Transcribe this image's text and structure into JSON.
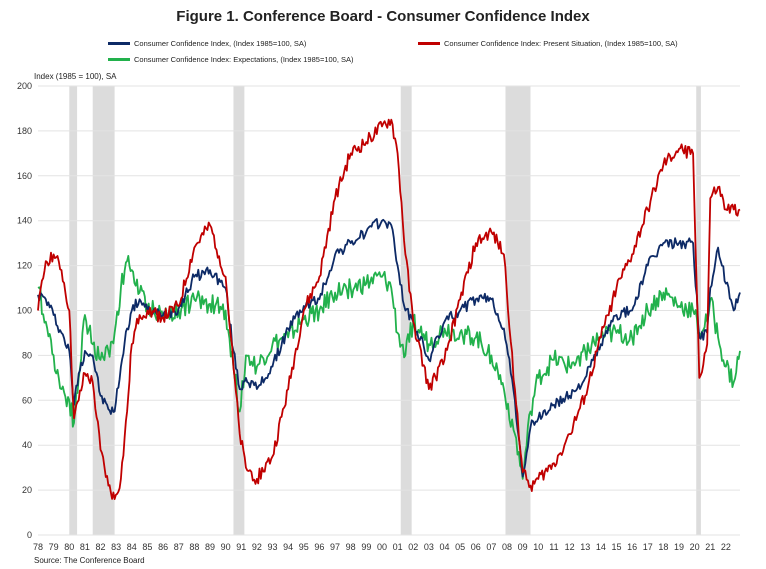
{
  "title": "Figure 1. Conference Board - Consumer Confidence Index",
  "legend": [
    {
      "label": "Consumer Confidence Index, (Index 1985=100, SA)",
      "color": "#0d2a66"
    },
    {
      "label": "Consumer Confidence Index: Present Situation, (Index 1985=100, SA)",
      "color": "#c00000"
    },
    {
      "label": "Consumer Confidence Index: Expectations, (Index 1985=100, SA)",
      "color": "#22b14c"
    }
  ],
  "y_unit": "Index (1985 = 100), SA",
  "source": "Source: The Conference Board",
  "chart_data": {
    "type": "line",
    "title": "Figure 1. Conference Board - Consumer Confidence Index",
    "ylabel": "Index (1985 = 100), SA",
    "xlabel": "",
    "ylim": [
      0,
      200
    ],
    "yticks": [
      0,
      20,
      40,
      60,
      80,
      100,
      120,
      140,
      160,
      180,
      200
    ],
    "xlim": [
      1978.0,
      2022.9
    ],
    "xtick_labels": [
      "78",
      "79",
      "80",
      "81",
      "82",
      "83",
      "84",
      "85",
      "86",
      "87",
      "88",
      "89",
      "90",
      "91",
      "92",
      "93",
      "94",
      "95",
      "96",
      "97",
      "98",
      "99",
      "00",
      "01",
      "02",
      "03",
      "04",
      "05",
      "06",
      "07",
      "08",
      "09",
      "10",
      "11",
      "12",
      "13",
      "14",
      "15",
      "16",
      "17",
      "18",
      "19",
      "20",
      "21",
      "22"
    ],
    "grid": true,
    "legend_position": "top",
    "recessions": [
      [
        1980.0,
        1980.5
      ],
      [
        1981.5,
        1982.9
      ],
      [
        1990.5,
        1991.2
      ],
      [
        2001.2,
        2001.9
      ],
      [
        2007.9,
        2009.5
      ],
      [
        2020.1,
        2020.4
      ]
    ],
    "series": [
      {
        "name": "Consumer Confidence Index, (Index 1985=100, SA)",
        "color": "#0d2a66",
        "x": [
          1978.0,
          1978.5,
          1979.0,
          1979.5,
          1980.0,
          1980.3,
          1980.6,
          1981.0,
          1981.5,
          1982.0,
          1982.5,
          1982.9,
          1983.3,
          1983.7,
          1984.0,
          1984.5,
          1985.0,
          1986.0,
          1987.0,
          1988.0,
          1989.0,
          1990.0,
          1990.5,
          1990.9,
          1991.3,
          1992.0,
          1993.0,
          1994.0,
          1995.0,
          1996.0,
          1997.0,
          1998.0,
          1999.0,
          2000.0,
          2000.6,
          2001.0,
          2001.5,
          2002.0,
          2003.0,
          2004.0,
          2005.0,
          2006.0,
          2007.0,
          2007.8,
          2008.5,
          2009.0,
          2009.5,
          2010.0,
          2011.0,
          2012.0,
          2013.0,
          2014.0,
          2015.0,
          2016.0,
          2017.0,
          2018.0,
          2019.0,
          2019.9,
          2020.3,
          2020.8,
          2021.0,
          2021.5,
          2022.0,
          2022.5,
          2022.9
        ],
        "y": [
          107,
          105,
          98,
          90,
          82,
          58,
          72,
          82,
          80,
          62,
          56,
          55,
          75,
          92,
          100,
          105,
          100,
          98,
          101,
          115,
          118,
          110,
          82,
          65,
          70,
          65,
          75,
          92,
          102,
          105,
          125,
          130,
          135,
          140,
          138,
          120,
          100,
          95,
          78,
          95,
          100,
          105,
          105,
          92,
          60,
          26,
          48,
          52,
          58,
          62,
          70,
          85,
          98,
          100,
          120,
          130,
          130,
          130,
          88,
          90,
          110,
          128,
          112,
          100,
          108
        ]
      },
      {
        "name": "Consumer Confidence Index: Present Situation, (Index 1985=100, SA)",
        "color": "#c00000",
        "x": [
          1978.0,
          1978.5,
          1979.0,
          1979.5,
          1980.0,
          1980.3,
          1980.6,
          1981.0,
          1981.5,
          1982.0,
          1982.5,
          1982.9,
          1983.3,
          1983.7,
          1984.0,
          1984.5,
          1985.0,
          1986.0,
          1987.0,
          1988.0,
          1989.0,
          1990.0,
          1990.5,
          1990.9,
          1991.3,
          1992.0,
          1993.0,
          1994.0,
          1995.0,
          1996.0,
          1997.0,
          1998.0,
          1999.0,
          2000.0,
          2000.6,
          2001.0,
          2001.5,
          2002.0,
          2003.0,
          2004.0,
          2005.0,
          2006.0,
          2007.0,
          2007.8,
          2008.5,
          2009.0,
          2009.5,
          2010.0,
          2011.0,
          2012.0,
          2013.0,
          2014.0,
          2015.0,
          2016.0,
          2017.0,
          2018.0,
          2019.0,
          2019.9,
          2020.3,
          2020.8,
          2021.0,
          2021.5,
          2022.0,
          2022.5,
          2022.9
        ],
        "y": [
          100,
          122,
          125,
          118,
          100,
          52,
          60,
          72,
          68,
          38,
          22,
          16,
          25,
          55,
          85,
          98,
          100,
          97,
          102,
          128,
          138,
          115,
          75,
          45,
          30,
          25,
          35,
          65,
          100,
          115,
          150,
          170,
          175,
          182,
          185,
          170,
          125,
          95,
          65,
          78,
          105,
          130,
          135,
          125,
          65,
          28,
          22,
          25,
          32,
          45,
          62,
          88,
          110,
          125,
          145,
          165,
          172,
          170,
          70,
          85,
          150,
          155,
          145,
          145,
          145
        ]
      },
      {
        "name": "Consumer Confidence Index: Expectations, (Index 1985=100, SA)",
        "color": "#22b14c",
        "x": [
          1978.0,
          1978.5,
          1979.0,
          1979.5,
          1980.0,
          1980.3,
          1980.6,
          1981.0,
          1981.5,
          1982.0,
          1982.5,
          1982.9,
          1983.3,
          1983.7,
          1984.0,
          1984.5,
          1985.0,
          1986.0,
          1987.0,
          1988.0,
          1989.0,
          1990.0,
          1990.5,
          1990.9,
          1991.3,
          1992.0,
          1993.0,
          1994.0,
          1995.0,
          1996.0,
          1997.0,
          1998.0,
          1999.0,
          2000.0,
          2000.6,
          2001.0,
          2001.5,
          2002.0,
          2003.0,
          2004.0,
          2005.0,
          2006.0,
          2007.0,
          2007.8,
          2008.5,
          2009.0,
          2009.5,
          2010.0,
          2011.0,
          2012.0,
          2013.0,
          2014.0,
          2015.0,
          2016.0,
          2017.0,
          2018.0,
          2019.0,
          2019.9,
          2020.3,
          2020.8,
          2021.0,
          2021.5,
          2022.0,
          2022.5,
          2022.9
        ],
        "y": [
          110,
          95,
          80,
          65,
          60,
          50,
          70,
          98,
          85,
          78,
          82,
          90,
          110,
          122,
          118,
          108,
          102,
          98,
          100,
          105,
          103,
          100,
          75,
          55,
          80,
          75,
          85,
          88,
          96,
          100,
          108,
          110,
          112,
          115,
          110,
          90,
          80,
          95,
          85,
          92,
          90,
          88,
          80,
          65,
          45,
          25,
          55,
          70,
          78,
          75,
          82,
          88,
          90,
          88,
          100,
          108,
          102,
          100,
          90,
          95,
          105,
          88,
          75,
          68,
          82
        ]
      }
    ]
  }
}
